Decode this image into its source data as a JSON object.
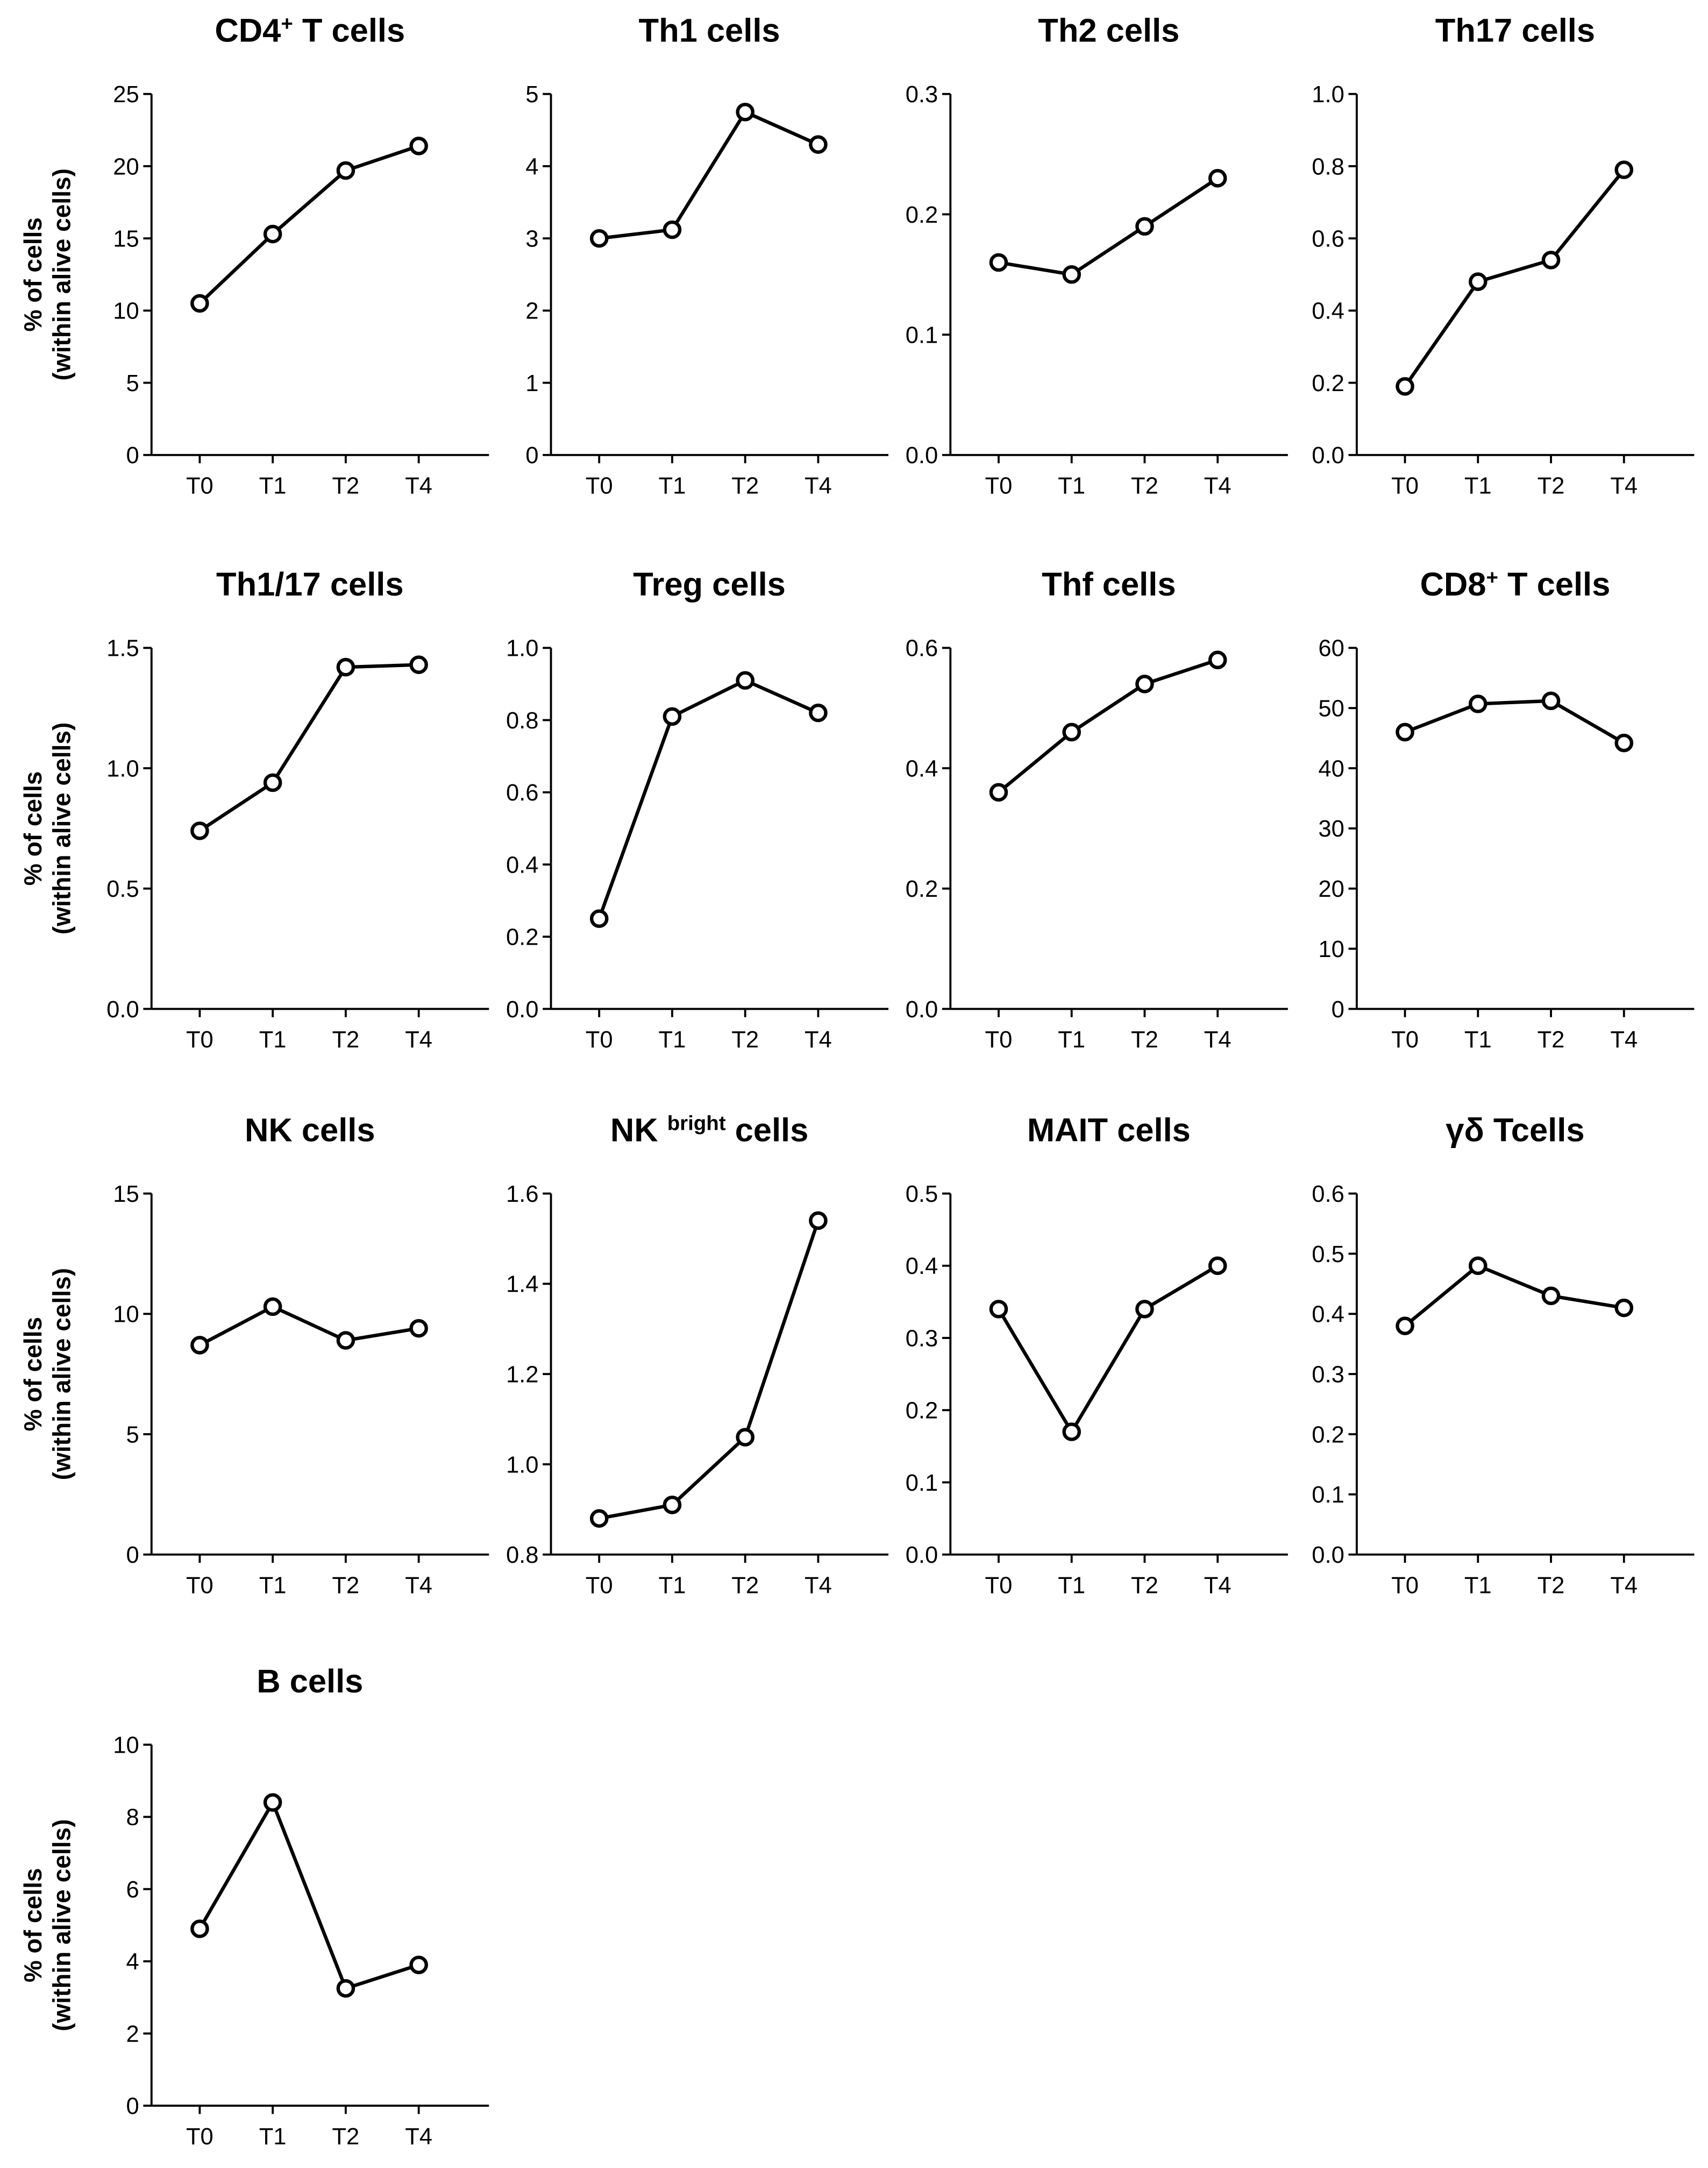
{
  "y_label_line1": "% of cells",
  "y_label_line2": "(within alive cells)",
  "chart_data": [
    {
      "type": "line",
      "title": "CD4",
      "title_sup": "+",
      "title_rest": " T cells",
      "categories": [
        "T0",
        "T1",
        "T2",
        "T4"
      ],
      "values": [
        10.5,
        15.3,
        19.7,
        21.4
      ],
      "ylim": [
        0,
        25
      ],
      "yticks": [
        "0",
        "5",
        "10",
        "15",
        "20",
        "25"
      ]
    },
    {
      "type": "line",
      "title": "Th1 cells",
      "title_sup": "",
      "title_rest": "",
      "categories": [
        "T0",
        "T1",
        "T2",
        "T4"
      ],
      "values": [
        3.0,
        3.12,
        4.75,
        4.3
      ],
      "ylim": [
        0,
        5
      ],
      "yticks": [
        "0",
        "1",
        "2",
        "3",
        "4",
        "5"
      ]
    },
    {
      "type": "line",
      "title": "Th2 cells",
      "title_sup": "",
      "title_rest": "",
      "categories": [
        "T0",
        "T1",
        "T2",
        "T4"
      ],
      "values": [
        0.16,
        0.15,
        0.19,
        0.23
      ],
      "ylim": [
        0,
        0.3
      ],
      "yticks": [
        "0.0",
        "0.1",
        "0.2",
        "0.3"
      ]
    },
    {
      "type": "line",
      "title": "Th17 cells",
      "title_sup": "",
      "title_rest": "",
      "categories": [
        "T0",
        "T1",
        "T2",
        "T4"
      ],
      "values": [
        0.19,
        0.48,
        0.54,
        0.79
      ],
      "ylim": [
        0,
        1.0
      ],
      "yticks": [
        "0.0",
        "0.2",
        "0.4",
        "0.6",
        "0.8",
        "1.0"
      ]
    },
    {
      "type": "line",
      "title": "Th1/17 cells",
      "title_sup": "",
      "title_rest": "",
      "categories": [
        "T0",
        "T1",
        "T2",
        "T4"
      ],
      "values": [
        0.74,
        0.94,
        1.42,
        1.43
      ],
      "ylim": [
        0,
        1.5
      ],
      "yticks": [
        "0.0",
        "0.5",
        "1.0",
        "1.5"
      ]
    },
    {
      "type": "line",
      "title": "Treg cells",
      "title_sup": "",
      "title_rest": "",
      "categories": [
        "T0",
        "T1",
        "T2",
        "T4"
      ],
      "values": [
        0.25,
        0.81,
        0.91,
        0.82
      ],
      "ylim": [
        0,
        1.0
      ],
      "yticks": [
        "0.0",
        "0.2",
        "0.4",
        "0.6",
        "0.8",
        "1.0"
      ]
    },
    {
      "type": "line",
      "title": "Thf cells",
      "title_sup": "",
      "title_rest": "",
      "categories": [
        "T0",
        "T1",
        "T2",
        "T4"
      ],
      "values": [
        0.36,
        0.46,
        0.54,
        0.58
      ],
      "ylim": [
        0,
        0.6
      ],
      "yticks": [
        "0.0",
        "0.2",
        "0.4",
        "0.6"
      ]
    },
    {
      "type": "line",
      "title": "CD8",
      "title_sup": "+",
      "title_rest": " T cells",
      "categories": [
        "T0",
        "T1",
        "T2",
        "T4"
      ],
      "values": [
        46,
        50.7,
        51.2,
        44.2
      ],
      "ylim": [
        0,
        60
      ],
      "yticks": [
        "0",
        "10",
        "20",
        "30",
        "40",
        "50",
        "60"
      ]
    },
    {
      "type": "line",
      "title": "NK cells",
      "title_sup": "",
      "title_rest": "",
      "categories": [
        "T0",
        "T1",
        "T2",
        "T4"
      ],
      "values": [
        8.7,
        10.3,
        8.9,
        9.4
      ],
      "ylim": [
        0,
        15
      ],
      "yticks": [
        "0",
        "5",
        "10",
        "15"
      ]
    },
    {
      "type": "line",
      "title": "NK ",
      "title_sup": "bright",
      "title_rest": " cells",
      "categories": [
        "T0",
        "T1",
        "T2",
        "T4"
      ],
      "values": [
        0.88,
        0.91,
        1.06,
        1.54
      ],
      "ylim": [
        0.8,
        1.6
      ],
      "yticks": [
        "0.8",
        "1.0",
        "1.2",
        "1.4",
        "1.6"
      ]
    },
    {
      "type": "line",
      "title": "MAIT cells",
      "title_sup": "",
      "title_rest": "",
      "categories": [
        "T0",
        "T1",
        "T2",
        "T4"
      ],
      "values": [
        0.34,
        0.17,
        0.34,
        0.4
      ],
      "ylim": [
        0,
        0.5
      ],
      "yticks": [
        "0.0",
        "0.1",
        "0.2",
        "0.3",
        "0.4",
        "0.5"
      ]
    },
    {
      "type": "line",
      "title": "γδ Tcells",
      "title_sup": "",
      "title_rest": "",
      "categories": [
        "T0",
        "T1",
        "T2",
        "T4"
      ],
      "values": [
        0.38,
        0.48,
        0.43,
        0.41
      ],
      "ylim": [
        0,
        0.6
      ],
      "yticks": [
        "0.0",
        "0.1",
        "0.2",
        "0.3",
        "0.4",
        "0.5",
        "0.6"
      ]
    },
    {
      "type": "line",
      "title": "B cells",
      "title_sup": "",
      "title_rest": "",
      "categories": [
        "T0",
        "T1",
        "T2",
        "T4"
      ],
      "values": [
        4.9,
        8.4,
        3.25,
        3.9
      ],
      "ylim": [
        0,
        10
      ],
      "yticks": [
        "0",
        "2",
        "4",
        "6",
        "8",
        "10"
      ]
    }
  ]
}
